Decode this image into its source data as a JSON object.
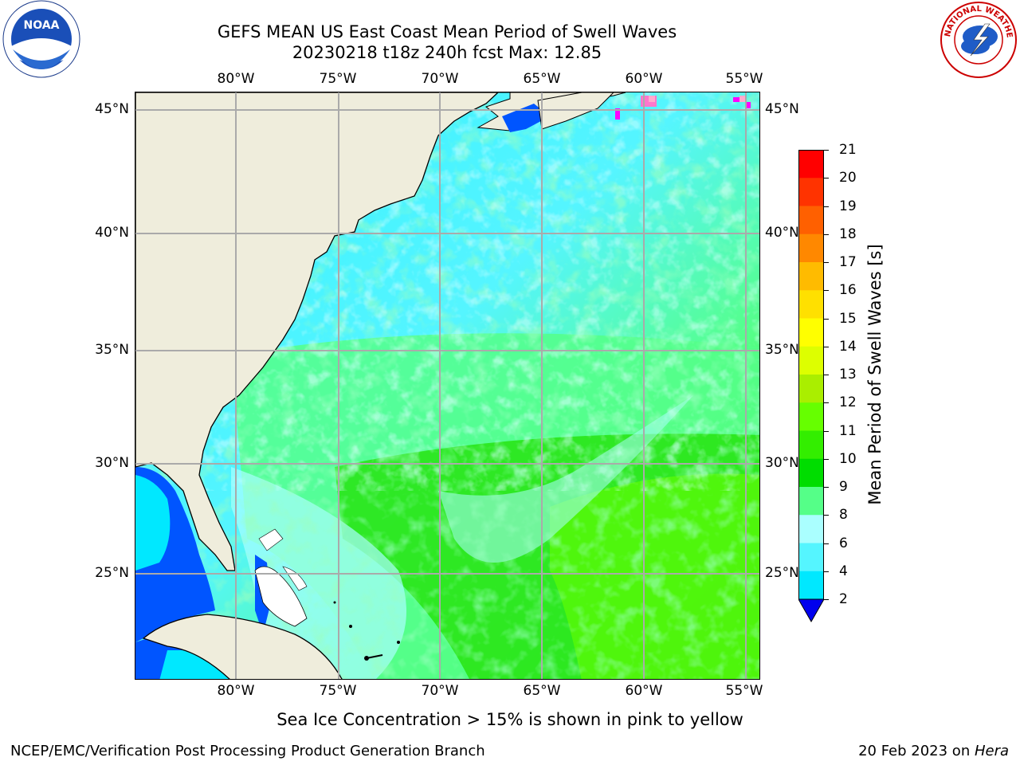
{
  "header": {
    "title_line1": "GEFS MEAN US East Coast Mean Period of Swell Waves",
    "title_line2": "20230218 t18z 240h fcst   Max: 12.85"
  },
  "map": {
    "lon_labels": [
      "80°W",
      "75°W",
      "70°W",
      "65°W",
      "60°W",
      "55°W"
    ],
    "lat_labels": [
      "45°N",
      "40°N",
      "35°N",
      "30°N",
      "25°N"
    ],
    "colors": {
      "land": "#efeddc",
      "grid": "#aaaaaa",
      "coast": "#000000"
    }
  },
  "colorbar": {
    "label": "Mean Period of Swell Waves [s]",
    "ticks": [
      "2",
      "4",
      "6",
      "8",
      "9",
      "10",
      "11",
      "12",
      "13",
      "14",
      "15",
      "16",
      "17",
      "18",
      "19",
      "20",
      "21"
    ],
    "colors": [
      "#0055ff",
      "#00e8ff",
      "#55f5ff",
      "#aaffff",
      "#55ff88",
      "#00dd00",
      "#33ee00",
      "#66ff00",
      "#aaee00",
      "#ddff00",
      "#ffff00",
      "#ffe000",
      "#ffbb00",
      "#ff8800",
      "#ff6000",
      "#ff3300",
      "#ff0000"
    ],
    "under_color": "#0000ee"
  },
  "note": "Sea Ice Concentration > 15% is shown in pink to yellow",
  "footer": {
    "left": "NCEP/EMC/Verification Post Processing Product Generation Branch",
    "right_date": "20 Feb 2023 on ",
    "right_machine": "Hera"
  },
  "logos": {
    "noaa_text": "NOAA",
    "nws_text": "NATIONAL WEATHER SERVICE"
  }
}
